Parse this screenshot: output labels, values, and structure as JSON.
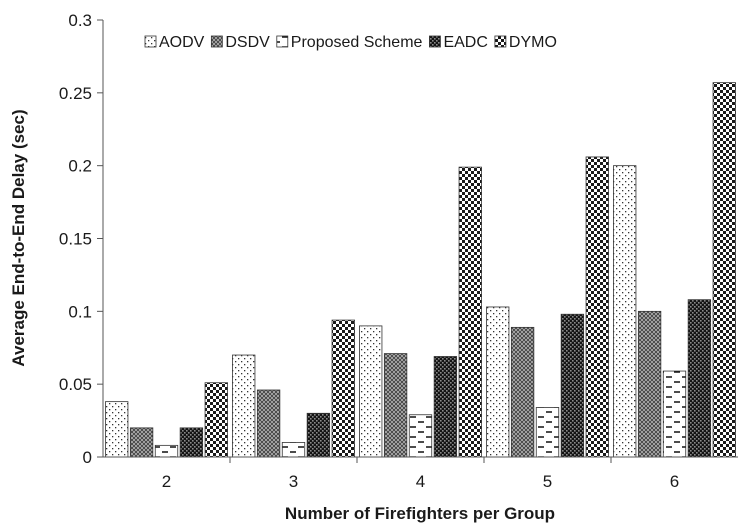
{
  "chart_data": {
    "type": "bar",
    "title": "",
    "xlabel": "Number of Firefighters per Group",
    "ylabel": "Average End-to-End Delay (sec)",
    "categories": [
      "2",
      "3",
      "4",
      "5",
      "6"
    ],
    "ylim": [
      0,
      0.3
    ],
    "yticks": [
      "0",
      "0.05",
      "0.1",
      "0.15",
      "0.2",
      "0.25",
      "0.3"
    ],
    "grid": false,
    "legend_position": "top",
    "series": [
      {
        "name": "AODV",
        "pattern": "sparse-dots",
        "values": [
          0.038,
          0.07,
          0.09,
          0.103,
          0.2
        ]
      },
      {
        "name": "DSDV",
        "pattern": "crosshatch",
        "values": [
          0.02,
          0.046,
          0.071,
          0.089,
          0.1
        ]
      },
      {
        "name": "Proposed Scheme",
        "pattern": "dashes",
        "values": [
          0.008,
          0.01,
          0.029,
          0.034,
          0.059
        ]
      },
      {
        "name": "EADC",
        "pattern": "dark-checker",
        "values": [
          0.02,
          0.03,
          0.069,
          0.098,
          0.108
        ]
      },
      {
        "name": "DYMO",
        "pattern": "checker",
        "values": [
          0.051,
          0.094,
          0.199,
          0.206,
          0.257
        ]
      }
    ]
  }
}
